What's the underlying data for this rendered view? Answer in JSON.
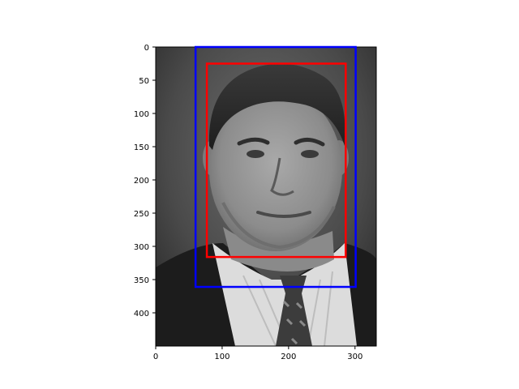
{
  "chart_data": {
    "type": "image",
    "title": "",
    "xlabel": "",
    "ylabel": "",
    "image_extent": {
      "width": 332,
      "height": 450
    },
    "xlim": [
      0,
      332
    ],
    "ylim": [
      450,
      0
    ],
    "y_inverted": true,
    "x_ticks": [
      0,
      100,
      200,
      300
    ],
    "y_ticks": [
      0,
      50,
      100,
      150,
      200,
      250,
      300,
      350,
      400
    ],
    "image_content": "grayscale portrait photograph of a man in a suit and tie",
    "rectangles": [
      {
        "color": "#0000ff",
        "x0": 60,
        "y0": 0,
        "x1": 301,
        "y1": 361
      },
      {
        "color": "#ff0000",
        "x0": 77,
        "y0": 25,
        "x1": 286,
        "y1": 316
      }
    ],
    "grid": false
  }
}
